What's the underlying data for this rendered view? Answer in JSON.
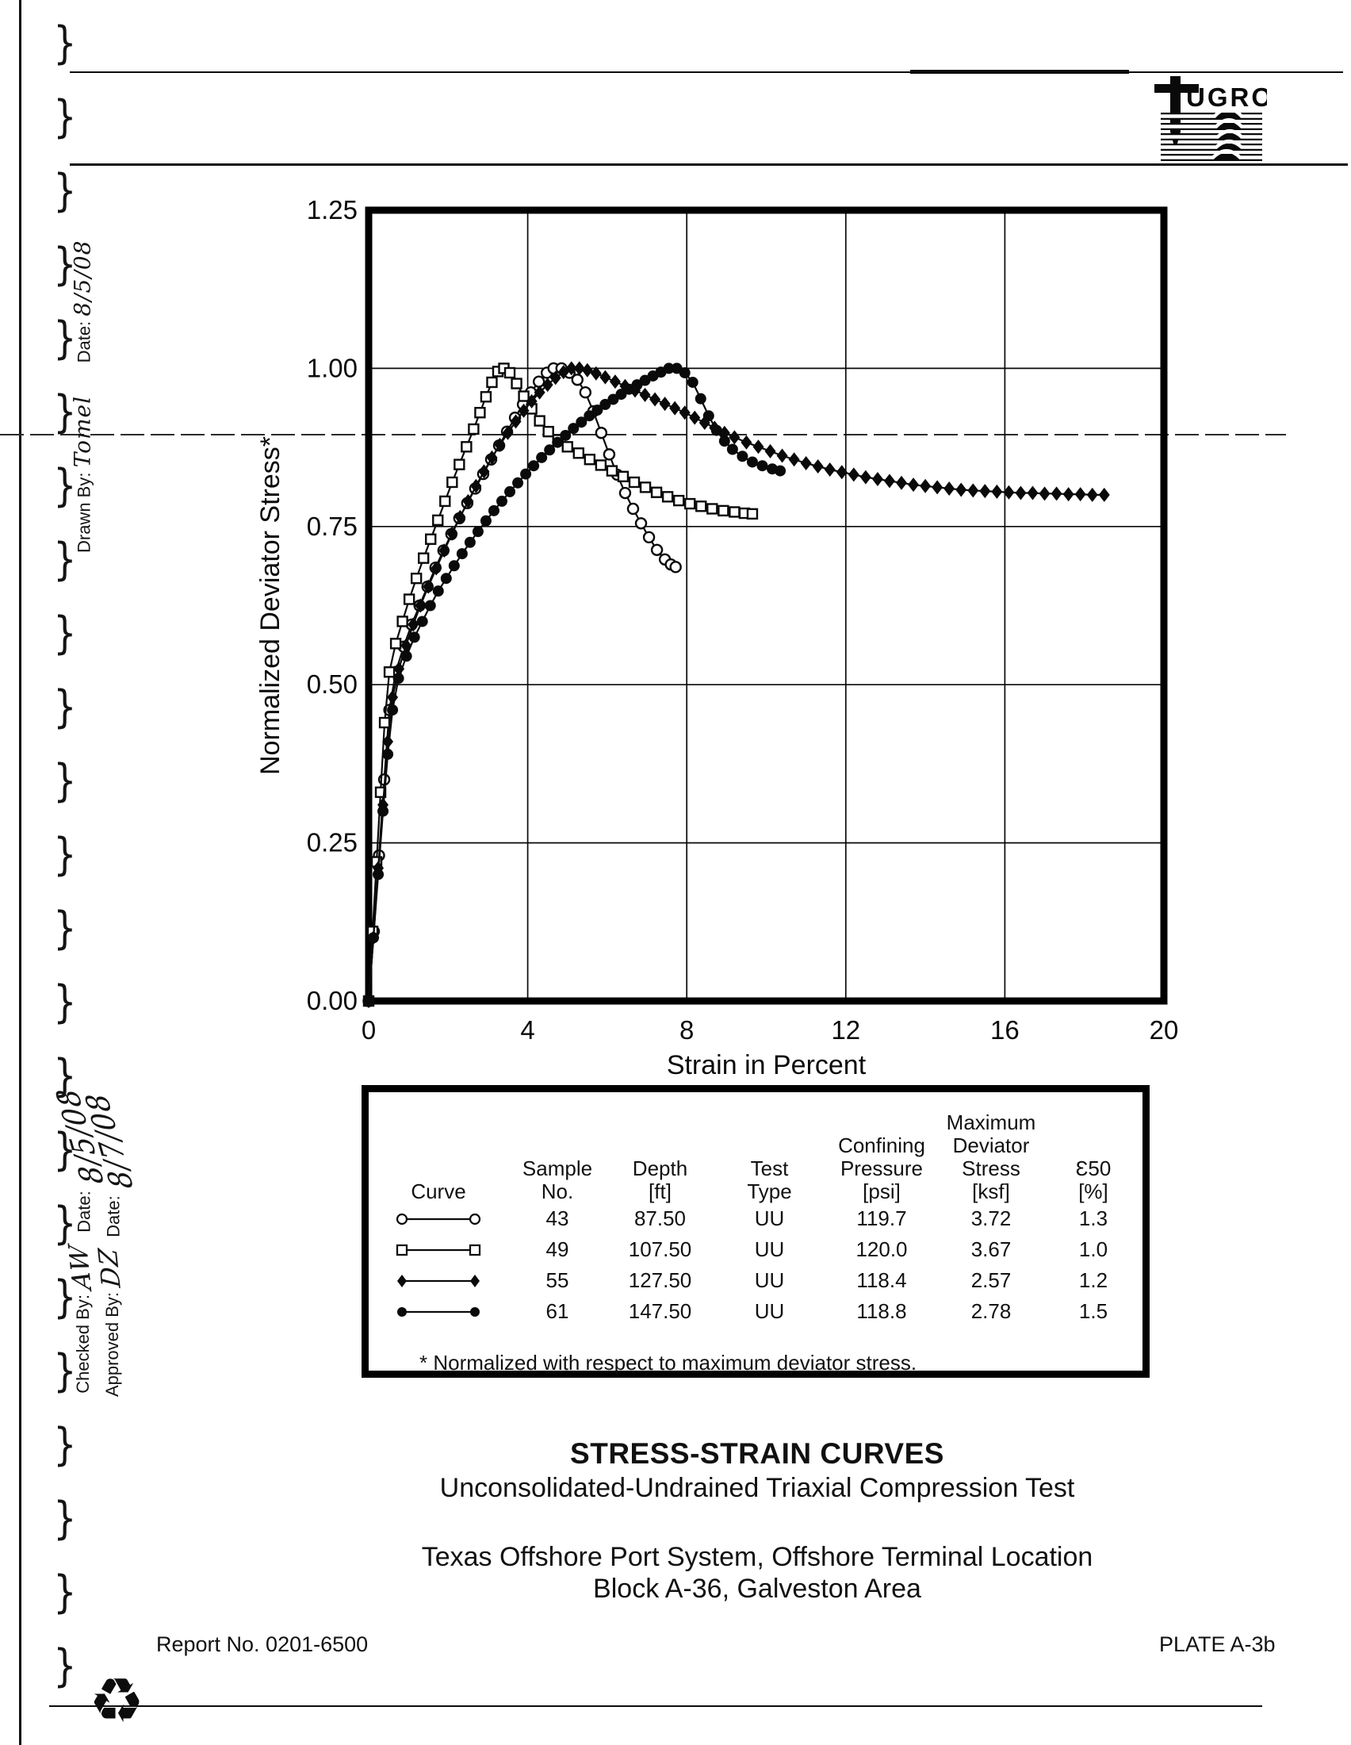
{
  "page": {
    "logo": {
      "brand": "FUGRO",
      "display": "UGRO"
    },
    "margin": {
      "drawn_date_label": "Date:",
      "drawn_date_value": "8/5/08",
      "drawn_by_label": "Drawn By:",
      "drawn_by_value": "Tomel",
      "checked_date_label": "Date:",
      "checked_date_value": "8/5/08",
      "approved_date_label": "Date:",
      "approved_date_value": "8/7/08",
      "checked_by_label": "Checked By:",
      "checked_by_value": "AW",
      "approved_by_label": "Approved By:",
      "approved_by_value": "DZ"
    },
    "titles": {
      "main": "STRESS-STRAIN CURVES",
      "sub": "Unconsolidated-Undrained Triaxial Compression Test",
      "project_line1": "Texas Offshore Port System, Offshore Terminal Location",
      "project_line2": "Block A-36, Galveston Area"
    },
    "footer": {
      "report_no": "Report No. 0201-6500",
      "plate": "PLATE A-3b"
    }
  },
  "chart_data": {
    "type": "line",
    "title": "",
    "xlabel": "Strain in Percent",
    "ylabel": "Normalized Deviator Stress*",
    "xlim": [
      0,
      20
    ],
    "ylim": [
      0,
      1.25
    ],
    "xticks": {
      "values": [
        0,
        4,
        8,
        12,
        16,
        20
      ],
      "labels": [
        "0",
        "4",
        "8",
        "12",
        "16",
        "20"
      ]
    },
    "yticks": {
      "values": [
        0,
        0.25,
        0.5,
        0.75,
        1.0,
        1.25
      ],
      "labels": [
        "0.00",
        "0.25",
        "0.50",
        "0.75",
        "1.00",
        "1.25"
      ]
    },
    "grid": true,
    "legend_position": "table-below",
    "series": [
      {
        "name": "Sample 43",
        "marker": "circle-open",
        "points": [
          [
            0,
            0
          ],
          [
            0.13,
            0.11
          ],
          [
            0.26,
            0.23
          ],
          [
            0.39,
            0.35
          ],
          [
            0.52,
            0.46
          ],
          [
            0.68,
            0.52
          ],
          [
            0.88,
            0.56
          ],
          [
            1.08,
            0.595
          ],
          [
            1.28,
            0.625
          ],
          [
            1.48,
            0.655
          ],
          [
            1.68,
            0.685
          ],
          [
            1.88,
            0.712
          ],
          [
            2.08,
            0.738
          ],
          [
            2.28,
            0.763
          ],
          [
            2.48,
            0.787
          ],
          [
            2.68,
            0.81
          ],
          [
            2.88,
            0.833
          ],
          [
            3.08,
            0.856
          ],
          [
            3.28,
            0.878
          ],
          [
            3.48,
            0.9
          ],
          [
            3.68,
            0.922
          ],
          [
            3.88,
            0.943
          ],
          [
            4.08,
            0.962
          ],
          [
            4.28,
            0.979
          ],
          [
            4.48,
            0.993
          ],
          [
            4.65,
            1.0
          ],
          [
            4.85,
            1.0
          ],
          [
            5.05,
            0.993
          ],
          [
            5.25,
            0.982
          ],
          [
            5.45,
            0.962
          ],
          [
            5.65,
            0.932
          ],
          [
            5.85,
            0.898
          ],
          [
            6.05,
            0.864
          ],
          [
            6.25,
            0.832
          ],
          [
            6.45,
            0.803
          ],
          [
            6.65,
            0.778
          ],
          [
            6.85,
            0.755
          ],
          [
            7.05,
            0.733
          ],
          [
            7.25,
            0.713
          ],
          [
            7.45,
            0.698
          ],
          [
            7.6,
            0.69
          ],
          [
            7.72,
            0.686
          ]
        ]
      },
      {
        "name": "Sample 49",
        "marker": "square-open",
        "points": [
          [
            0,
            0
          ],
          [
            0.1,
            0.11
          ],
          [
            0.2,
            0.22
          ],
          [
            0.3,
            0.33
          ],
          [
            0.4,
            0.44
          ],
          [
            0.52,
            0.52
          ],
          [
            0.68,
            0.565
          ],
          [
            0.85,
            0.6
          ],
          [
            1.02,
            0.635
          ],
          [
            1.2,
            0.668
          ],
          [
            1.38,
            0.7
          ],
          [
            1.56,
            0.73
          ],
          [
            1.74,
            0.76
          ],
          [
            1.92,
            0.79
          ],
          [
            2.1,
            0.82
          ],
          [
            2.28,
            0.848
          ],
          [
            2.46,
            0.876
          ],
          [
            2.64,
            0.904
          ],
          [
            2.8,
            0.93
          ],
          [
            2.95,
            0.955
          ],
          [
            3.1,
            0.978
          ],
          [
            3.25,
            0.995
          ],
          [
            3.4,
            1.0
          ],
          [
            3.55,
            0.993
          ],
          [
            3.72,
            0.976
          ],
          [
            3.9,
            0.956
          ],
          [
            4.1,
            0.936
          ],
          [
            4.3,
            0.917
          ],
          [
            4.52,
            0.9
          ],
          [
            4.76,
            0.887
          ],
          [
            5.0,
            0.876
          ],
          [
            5.28,
            0.866
          ],
          [
            5.56,
            0.856
          ],
          [
            5.84,
            0.847
          ],
          [
            6.12,
            0.838
          ],
          [
            6.4,
            0.829
          ],
          [
            6.68,
            0.82
          ],
          [
            6.96,
            0.812
          ],
          [
            7.24,
            0.804
          ],
          [
            7.52,
            0.797
          ],
          [
            7.8,
            0.791
          ],
          [
            8.08,
            0.786
          ],
          [
            8.36,
            0.782
          ],
          [
            8.64,
            0.778
          ],
          [
            8.92,
            0.775
          ],
          [
            9.2,
            0.773
          ],
          [
            9.45,
            0.771
          ],
          [
            9.65,
            0.77
          ]
        ]
      },
      {
        "name": "Sample 55",
        "marker": "diamond-filled",
        "points": [
          [
            0,
            0
          ],
          [
            0.12,
            0.1
          ],
          [
            0.24,
            0.21
          ],
          [
            0.36,
            0.31
          ],
          [
            0.48,
            0.41
          ],
          [
            0.6,
            0.48
          ],
          [
            0.76,
            0.525
          ],
          [
            0.94,
            0.562
          ],
          [
            1.12,
            0.595
          ],
          [
            1.3,
            0.625
          ],
          [
            1.5,
            0.655
          ],
          [
            1.7,
            0.684
          ],
          [
            1.9,
            0.712
          ],
          [
            2.1,
            0.739
          ],
          [
            2.3,
            0.765
          ],
          [
            2.5,
            0.79
          ],
          [
            2.7,
            0.814
          ],
          [
            2.9,
            0.837
          ],
          [
            3.1,
            0.859
          ],
          [
            3.3,
            0.879
          ],
          [
            3.5,
            0.898
          ],
          [
            3.7,
            0.916
          ],
          [
            3.9,
            0.933
          ],
          [
            4.1,
            0.948
          ],
          [
            4.3,
            0.962
          ],
          [
            4.5,
            0.974
          ],
          [
            4.7,
            0.985
          ],
          [
            4.9,
            0.994
          ],
          [
            5.1,
            1.0
          ],
          [
            5.3,
            1.0
          ],
          [
            5.5,
            0.997
          ],
          [
            5.72,
            0.992
          ],
          [
            5.95,
            0.986
          ],
          [
            6.2,
            0.979
          ],
          [
            6.45,
            0.972
          ],
          [
            6.7,
            0.965
          ],
          [
            6.95,
            0.958
          ],
          [
            7.2,
            0.951
          ],
          [
            7.45,
            0.944
          ],
          [
            7.7,
            0.937
          ],
          [
            7.95,
            0.93
          ],
          [
            8.2,
            0.922
          ],
          [
            8.45,
            0.914
          ],
          [
            8.7,
            0.906
          ],
          [
            8.95,
            0.898
          ],
          [
            9.2,
            0.891
          ],
          [
            9.5,
            0.883
          ],
          [
            9.8,
            0.876
          ],
          [
            10.1,
            0.869
          ],
          [
            10.4,
            0.862
          ],
          [
            10.7,
            0.856
          ],
          [
            11.0,
            0.85
          ],
          [
            11.3,
            0.845
          ],
          [
            11.6,
            0.84
          ],
          [
            11.9,
            0.836
          ],
          [
            12.2,
            0.832
          ],
          [
            12.5,
            0.828
          ],
          [
            12.8,
            0.825
          ],
          [
            13.1,
            0.822
          ],
          [
            13.4,
            0.819
          ],
          [
            13.7,
            0.816
          ],
          [
            14.0,
            0.814
          ],
          [
            14.3,
            0.812
          ],
          [
            14.6,
            0.81
          ],
          [
            14.9,
            0.808
          ],
          [
            15.2,
            0.807
          ],
          [
            15.5,
            0.806
          ],
          [
            15.8,
            0.805
          ],
          [
            16.1,
            0.804
          ],
          [
            16.4,
            0.803
          ],
          [
            16.7,
            0.803
          ],
          [
            17.0,
            0.802
          ],
          [
            17.3,
            0.802
          ],
          [
            17.6,
            0.801
          ],
          [
            17.9,
            0.801
          ],
          [
            18.2,
            0.8
          ],
          [
            18.5,
            0.8
          ]
        ]
      },
      {
        "name": "Sample 61",
        "marker": "circle-filled",
        "points": [
          [
            0,
            0
          ],
          [
            0.12,
            0.1
          ],
          [
            0.24,
            0.2
          ],
          [
            0.36,
            0.3
          ],
          [
            0.48,
            0.39
          ],
          [
            0.6,
            0.46
          ],
          [
            0.75,
            0.51
          ],
          [
            0.95,
            0.545
          ],
          [
            1.15,
            0.575
          ],
          [
            1.35,
            0.6
          ],
          [
            1.55,
            0.625
          ],
          [
            1.75,
            0.648
          ],
          [
            1.95,
            0.668
          ],
          [
            2.15,
            0.688
          ],
          [
            2.35,
            0.707
          ],
          [
            2.55,
            0.725
          ],
          [
            2.75,
            0.742
          ],
          [
            2.95,
            0.759
          ],
          [
            3.15,
            0.775
          ],
          [
            3.35,
            0.79
          ],
          [
            3.55,
            0.805
          ],
          [
            3.75,
            0.819
          ],
          [
            3.95,
            0.833
          ],
          [
            4.15,
            0.846
          ],
          [
            4.35,
            0.859
          ],
          [
            4.55,
            0.871
          ],
          [
            4.75,
            0.883
          ],
          [
            4.95,
            0.894
          ],
          [
            5.15,
            0.905
          ],
          [
            5.35,
            0.915
          ],
          [
            5.55,
            0.925
          ],
          [
            5.75,
            0.934
          ],
          [
            5.95,
            0.943
          ],
          [
            6.15,
            0.951
          ],
          [
            6.35,
            0.959
          ],
          [
            6.55,
            0.967
          ],
          [
            6.75,
            0.974
          ],
          [
            6.95,
            0.981
          ],
          [
            7.15,
            0.988
          ],
          [
            7.35,
            0.994
          ],
          [
            7.55,
            1.0
          ],
          [
            7.75,
            1.0
          ],
          [
            7.95,
            0.993
          ],
          [
            8.15,
            0.978
          ],
          [
            8.35,
            0.952
          ],
          [
            8.55,
            0.925
          ],
          [
            8.75,
            0.902
          ],
          [
            8.95,
            0.885
          ],
          [
            9.15,
            0.872
          ],
          [
            9.4,
            0.861
          ],
          [
            9.65,
            0.852
          ],
          [
            9.9,
            0.846
          ],
          [
            10.15,
            0.841
          ],
          [
            10.35,
            0.838
          ]
        ]
      }
    ]
  },
  "legend_table": {
    "headers": [
      "Curve",
      "Sample\nNo.",
      "Depth\n[ft]",
      "Test\nType",
      "Confining\nPressure\n[psi]",
      "Maximum\nDeviator\nStress\n[ksf]",
      "Ɛ50\n[%]"
    ],
    "rows": [
      {
        "marker": "circle-open",
        "sample_no": "43",
        "depth_ft": "87.50",
        "test_type": "UU",
        "confining_pressure_psi": "119.7",
        "max_deviator_stress_ksf": "3.72",
        "e50_pct": "1.3"
      },
      {
        "marker": "square-open",
        "sample_no": "49",
        "depth_ft": "107.50",
        "test_type": "UU",
        "confining_pressure_psi": "120.0",
        "max_deviator_stress_ksf": "3.67",
        "e50_pct": "1.0"
      },
      {
        "marker": "diamond-filled",
        "sample_no": "55",
        "depth_ft": "127.50",
        "test_type": "UU",
        "confining_pressure_psi": "118.4",
        "max_deviator_stress_ksf": "2.57",
        "e50_pct": "1.2"
      },
      {
        "marker": "circle-filled",
        "sample_no": "61",
        "depth_ft": "147.50",
        "test_type": "UU",
        "confining_pressure_psi": "118.8",
        "max_deviator_stress_ksf": "2.78",
        "e50_pct": "1.5"
      }
    ],
    "footnote": "* Normalized with respect to maximum deviator stress."
  }
}
